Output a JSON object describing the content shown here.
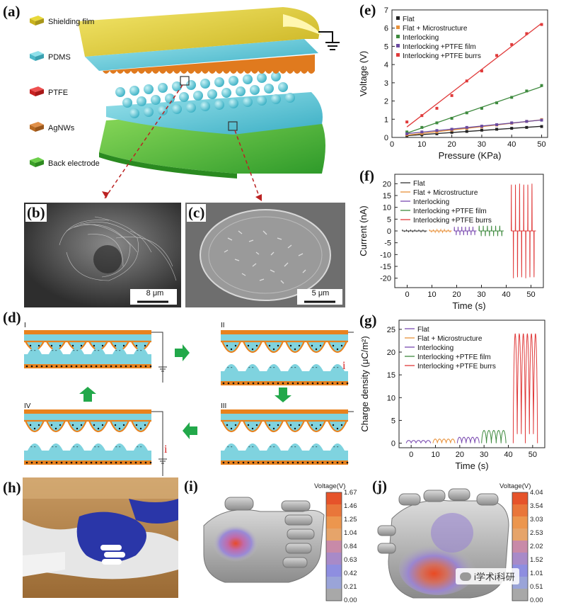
{
  "panel_labels": {
    "a": "(a)",
    "b": "(b)",
    "c": "(c)",
    "d": "(d)",
    "e": "(e)",
    "f": "(f)",
    "g": "(g)",
    "h": "(h)",
    "i": "(i)",
    "j": "(j)"
  },
  "panel_a": {
    "layers": [
      {
        "label": "Shielding film",
        "color": "#e8d83a"
      },
      {
        "label": "PDMS",
        "color": "#5fc8d8"
      },
      {
        "label": "PTFE",
        "color": "#d92b2b"
      },
      {
        "label": "AgNWs",
        "color": "#c8742a"
      },
      {
        "label": "Back electrode",
        "color": "#4cba3a"
      }
    ]
  },
  "panel_b": {
    "scale_bar": "8 μm"
  },
  "panel_c": {
    "scale_bar": "5 μm"
  },
  "panel_d": {
    "stages": [
      "I",
      "II",
      "III",
      "IV"
    ],
    "current_label": "i"
  },
  "panel_i": {
    "colorbar_title": "Voltage(V)",
    "ticks": [
      "1.67",
      "1.46",
      "1.25",
      "1.04",
      "0.84",
      "0.63",
      "0.42",
      "0.21",
      "0.00"
    ]
  },
  "panel_j": {
    "colorbar_title": "Voltage(V)",
    "ticks": [
      "4.04",
      "3.54",
      "3.03",
      "2.53",
      "2.02",
      "1.52",
      "1.01",
      "0.51",
      "0.00"
    ]
  },
  "watermark": "i学术i科研",
  "chart_data": [
    {
      "panel": "e",
      "type": "scatter",
      "xlabel": "Pressure (KPa)",
      "ylabel": "Voltage (V)",
      "xlim": [
        0,
        52
      ],
      "ylim": [
        0,
        7
      ],
      "xticks": [
        0,
        10,
        20,
        30,
        40,
        50
      ],
      "yticks": [
        0,
        1,
        2,
        3,
        4,
        5,
        6,
        7
      ],
      "legend_position": "top-left",
      "series": [
        {
          "name": "Flat",
          "color": "#222222",
          "x": [
            5,
            10,
            15,
            20,
            25,
            30,
            35,
            40,
            45,
            50
          ],
          "y": [
            0.1,
            0.15,
            0.2,
            0.28,
            0.33,
            0.4,
            0.45,
            0.5,
            0.55,
            0.6
          ]
        },
        {
          "name": "Flat + Microstructure",
          "color": "#e8913a",
          "x": [
            5,
            10,
            15,
            20,
            25,
            30,
            35,
            40,
            45,
            50
          ],
          "y": [
            0.15,
            0.22,
            0.3,
            0.4,
            0.5,
            0.58,
            0.68,
            0.78,
            0.88,
            0.98
          ]
        },
        {
          "name": "Interlocking",
          "color": "#3e8a3e",
          "x": [
            5,
            10,
            15,
            20,
            25,
            30,
            35,
            40,
            45,
            50
          ],
          "y": [
            0.3,
            0.55,
            0.8,
            1.05,
            1.35,
            1.6,
            1.9,
            2.2,
            2.55,
            2.85
          ]
        },
        {
          "name": "Interlocking +PTFE film",
          "color": "#6a4aa0",
          "x": [
            5,
            10,
            15,
            20,
            25,
            30,
            35,
            40,
            45,
            50
          ],
          "y": [
            0.2,
            0.3,
            0.38,
            0.45,
            0.55,
            0.62,
            0.7,
            0.8,
            0.88,
            0.95
          ]
        },
        {
          "name": "Interlocking +PTFE burrs",
          "color": "#e03a3a",
          "x": [
            5,
            10,
            15,
            20,
            25,
            30,
            35,
            40,
            45,
            50
          ],
          "y": [
            0.85,
            1.2,
            1.6,
            2.3,
            3.1,
            3.65,
            4.5,
            5.1,
            5.7,
            6.2
          ]
        }
      ]
    },
    {
      "panel": "f",
      "type": "line",
      "xlabel": "Time (s)",
      "ylabel": "Current (nA)",
      "xlim": [
        -5,
        55
      ],
      "ylim": [
        -24,
        24
      ],
      "xticks": [
        0,
        10,
        20,
        30,
        40,
        50
      ],
      "yticks": [
        -20,
        -15,
        -10,
        -5,
        0,
        5,
        10,
        15,
        20
      ],
      "legend_position": "top-left",
      "series": [
        {
          "name": "Flat",
          "color": "#333333",
          "t_range": [
            -2,
            8
          ],
          "amplitude": 0.4,
          "pulses": 6
        },
        {
          "name": "Flat + Microstructure",
          "color": "#e8913a",
          "t_range": [
            9,
            18
          ],
          "amplitude": 0.6,
          "pulses": 6
        },
        {
          "name": "Interlocking",
          "color": "#7a4ab0",
          "t_range": [
            19,
            28
          ],
          "amplitude": 1.8,
          "pulses": 6
        },
        {
          "name": "Interlocking +PTFE film",
          "color": "#3e8a3e",
          "t_range": [
            29,
            39
          ],
          "amplitude": 2.2,
          "pulses": 6
        },
        {
          "name": "Interlocking +PTFE burrs",
          "color": "#e03a3a",
          "t_range": [
            42,
            52
          ],
          "amplitude": 20,
          "pulses": 6
        }
      ]
    },
    {
      "panel": "g",
      "type": "line",
      "xlabel": "Time (s)",
      "ylabel": "Charge density (μC/m²)",
      "xlim": [
        -5,
        55
      ],
      "ylim": [
        -1,
        27
      ],
      "xticks": [
        0,
        10,
        20,
        30,
        40,
        50
      ],
      "yticks": [
        0,
        5,
        10,
        15,
        20,
        25
      ],
      "legend_position": "top-left",
      "series": [
        {
          "name": "Flat",
          "color": "#7a4ab0",
          "t_range": [
            -2,
            8
          ],
          "amplitude": 0.6,
          "pulses": 5
        },
        {
          "name": "Flat + Microstructure",
          "color": "#e8913a",
          "t_range": [
            9,
            18
          ],
          "amplitude": 0.9,
          "pulses": 5
        },
        {
          "name": "Interlocking",
          "color": "#7a4ab0",
          "t_range": [
            19,
            28
          ],
          "amplitude": 1.3,
          "pulses": 5
        },
        {
          "name": "Interlocking +PTFE film",
          "color": "#3e8a3e",
          "t_range": [
            29,
            39
          ],
          "amplitude": 2.8,
          "pulses": 5
        },
        {
          "name": "Interlocking +PTFE burrs",
          "color": "#e03a3a",
          "t_range": [
            42,
            52
          ],
          "amplitude": 24,
          "pulses": 6
        }
      ]
    }
  ]
}
